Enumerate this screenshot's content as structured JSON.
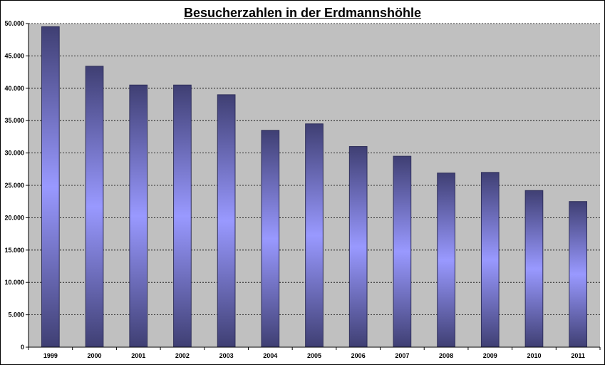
{
  "chart_data": {
    "type": "bar",
    "title": "Besucherzahlen in der Erdmannshöhle",
    "xlabel": "",
    "ylabel": "",
    "categories": [
      "1999",
      "2000",
      "2001",
      "2002",
      "2003",
      "2004",
      "2005",
      "2006",
      "2007",
      "2008",
      "2009",
      "2010",
      "2011"
    ],
    "values": [
      49500,
      43400,
      40500,
      40500,
      39000,
      33500,
      34500,
      31000,
      29500,
      26900,
      27000,
      24200,
      22500
    ],
    "ylim": [
      0,
      50000
    ],
    "yticks": [
      0,
      5000,
      10000,
      15000,
      20000,
      25000,
      30000,
      35000,
      40000,
      45000,
      50000
    ],
    "ytick_labels": [
      "0",
      "5.000",
      "10.000",
      "15.000",
      "20.000",
      "25.000",
      "30.000",
      "35.000",
      "40.000",
      "45.000",
      "50.000"
    ],
    "grid": true,
    "legend": "none",
    "colors": {
      "plot_background": "#c0c0c0",
      "bar_edge": "#2f2f5a",
      "bar_dark": "#3f3f73",
      "bar_light": "#9999ff",
      "gridline": "#000000"
    }
  }
}
